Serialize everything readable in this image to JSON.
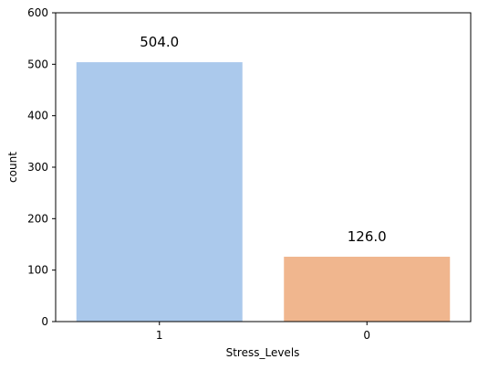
{
  "chart_data": {
    "type": "bar",
    "title": "",
    "xlabel": "Stress_Levels",
    "ylabel": "count",
    "categories": [
      "1",
      "0"
    ],
    "values": [
      504,
      126
    ],
    "data_labels": [
      "504.0",
      "126.0"
    ],
    "ylim": [
      0,
      600
    ],
    "yticks": [
      0,
      100,
      200,
      300,
      400,
      500,
      600
    ],
    "bar_colors": [
      "#abc9ec",
      "#f0b68e"
    ],
    "grid": false,
    "legend": "none"
  }
}
